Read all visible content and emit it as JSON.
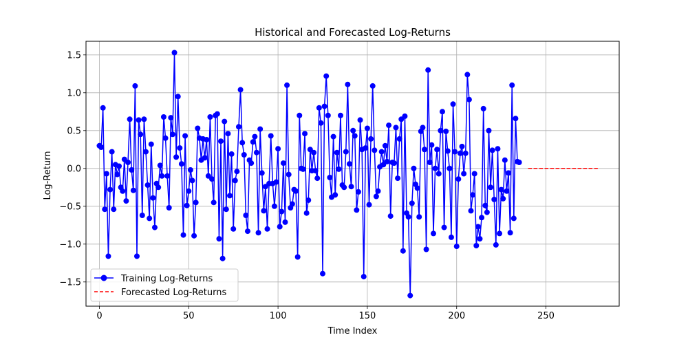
{
  "chart_data": {
    "type": "line",
    "title": "Historical and Forecasted Log-Returns",
    "xlabel": "Time Index",
    "ylabel": "Log-Return",
    "xlim": [
      -7.5,
      291
    ],
    "ylim": [
      -1.82,
      1.68
    ],
    "xticks": [
      0,
      50,
      100,
      150,
      200,
      250
    ],
    "yticks": [
      -1.5,
      -1.0,
      -0.5,
      0.0,
      0.5,
      1.0,
      1.5
    ],
    "ytick_labels": [
      "−1.5",
      "−1.0",
      "−0.5",
      "0.0",
      "0.5",
      "1.0",
      "1.5"
    ],
    "grid": true,
    "legend_position": "lower-left",
    "series": [
      {
        "name": "Training Log-Returns",
        "color": "#0000ff",
        "style": "solid-with-markers",
        "x_start": 0,
        "values": [
          0.3,
          0.28,
          0.8,
          -0.54,
          -0.07,
          -1.16,
          -0.28,
          0.22,
          -0.54,
          0.05,
          -0.08,
          0.03,
          -0.25,
          -0.3,
          0.12,
          -0.43,
          0.08,
          0.65,
          -0.02,
          -0.29,
          1.09,
          -1.16,
          0.64,
          0.45,
          -0.62,
          0.65,
          0.22,
          -0.22,
          -0.66,
          0.32,
          -0.39,
          -0.78,
          -0.2,
          -0.25,
          0.04,
          -0.1,
          0.68,
          0.4,
          -0.1,
          -0.52,
          0.67,
          0.45,
          1.53,
          0.15,
          0.95,
          0.27,
          0.06,
          -0.88,
          0.43,
          -0.49,
          -0.3,
          -0.02,
          -0.16,
          -0.89,
          -0.45,
          0.53,
          0.4,
          0.11,
          0.39,
          0.14,
          0.38,
          -0.1,
          0.68,
          -0.14,
          -0.45,
          0.7,
          0.72,
          -0.93,
          0.36,
          -1.19,
          0.62,
          -0.54,
          0.46,
          -0.36,
          0.19,
          -0.8,
          -0.16,
          -0.04,
          0.55,
          1.04,
          0.34,
          0.18,
          -0.62,
          -0.83,
          0.11,
          0.07,
          0.35,
          0.42,
          0.21,
          -0.85,
          0.52,
          -0.06,
          -0.56,
          -0.24,
          -0.8,
          -0.2,
          0.43,
          -0.2,
          -0.5,
          -0.18,
          0.26,
          -0.77,
          -0.57,
          0.07,
          -0.71,
          1.1,
          -0.08,
          -0.52,
          -0.47,
          -0.28,
          -0.3,
          -1.17,
          0.7,
          0.0,
          -0.01,
          0.46,
          -0.59,
          -0.42,
          0.25,
          -0.03,
          0.21,
          -0.03,
          -0.13,
          0.8,
          0.6,
          -1.39,
          0.82,
          1.22,
          0.7,
          -0.12,
          -0.38,
          0.42,
          -0.35,
          0.21,
          -0.01,
          0.7,
          -0.22,
          -0.25,
          0.22,
          1.11,
          0.06,
          -0.24,
          0.5,
          0.43,
          -0.55,
          -0.31,
          0.64,
          0.25,
          -1.43,
          0.27,
          0.53,
          -0.48,
          0.39,
          1.09,
          0.24,
          -0.37,
          -0.3,
          0.02,
          0.22,
          0.05,
          0.3,
          0.09,
          0.57,
          -0.63,
          0.08,
          0.07,
          0.54,
          -0.13,
          0.39,
          0.65,
          -1.09,
          0.69,
          -0.59,
          -0.64,
          -1.68,
          -0.46,
          0.0,
          -0.21,
          -0.26,
          -0.64,
          0.49,
          0.54,
          0.25,
          -1.07,
          1.3,
          0.08,
          0.31,
          -0.86,
          0.0,
          0.25,
          -0.07,
          0.5,
          0.75,
          -0.78,
          0.49,
          0.23,
          0.0,
          -0.91,
          0.85,
          0.22,
          -1.03,
          -0.14,
          0.2,
          0.29,
          -0.07,
          0.2,
          1.24,
          0.91,
          -0.56,
          -0.35,
          -0.07,
          -1.02,
          -0.77,
          -0.93,
          -0.65,
          0.79,
          -0.49,
          -0.58,
          0.5,
          -0.25,
          0.24,
          -0.41,
          -1.01,
          0.26,
          -0.86,
          -0.28,
          -0.4,
          0.11,
          -0.3,
          -0.06,
          -0.85,
          1.1,
          -0.66,
          0.66,
          0.09,
          0.08
        ]
      },
      {
        "name": "Forecasted Log-Returns",
        "color": "#ff0000",
        "style": "dashed",
        "x": [
          240,
          279
        ],
        "values": [
          0.0,
          0.0
        ]
      }
    ]
  }
}
